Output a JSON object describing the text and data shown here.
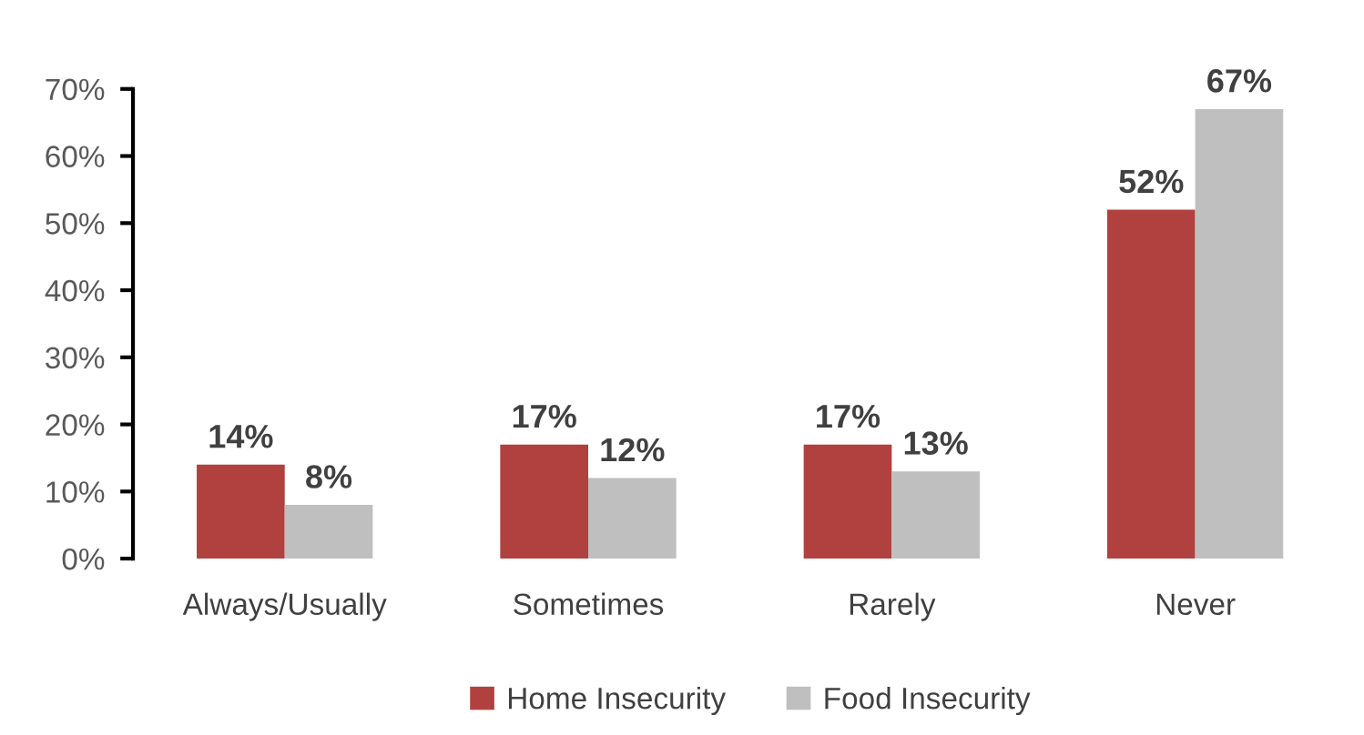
{
  "chart_data": {
    "type": "bar",
    "categories": [
      "Always/Usually",
      "Sometimes",
      "Rarely",
      "Never"
    ],
    "series": [
      {
        "name": "Home Insecurity",
        "color": "#b0413e",
        "values": [
          14,
          17,
          17,
          52
        ],
        "value_labels": [
          "14%",
          "17%",
          "17%",
          "52%"
        ]
      },
      {
        "name": "Food Insecurity",
        "color": "#bfbfbf",
        "values": [
          8,
          12,
          13,
          67
        ],
        "value_labels": [
          "8%",
          "12%",
          "13%",
          "67%"
        ]
      }
    ],
    "ylim": [
      0,
      70
    ],
    "yticks": [
      {
        "value": 0,
        "label": "0%"
      },
      {
        "value": 10,
        "label": "10%"
      },
      {
        "value": 20,
        "label": "20%"
      },
      {
        "value": 30,
        "label": "30%"
      },
      {
        "value": 40,
        "label": "40%"
      },
      {
        "value": 50,
        "label": "50%"
      },
      {
        "value": 60,
        "label": "60%"
      },
      {
        "value": 70,
        "label": "70%"
      }
    ],
    "grid": false,
    "legend": "bottom"
  }
}
